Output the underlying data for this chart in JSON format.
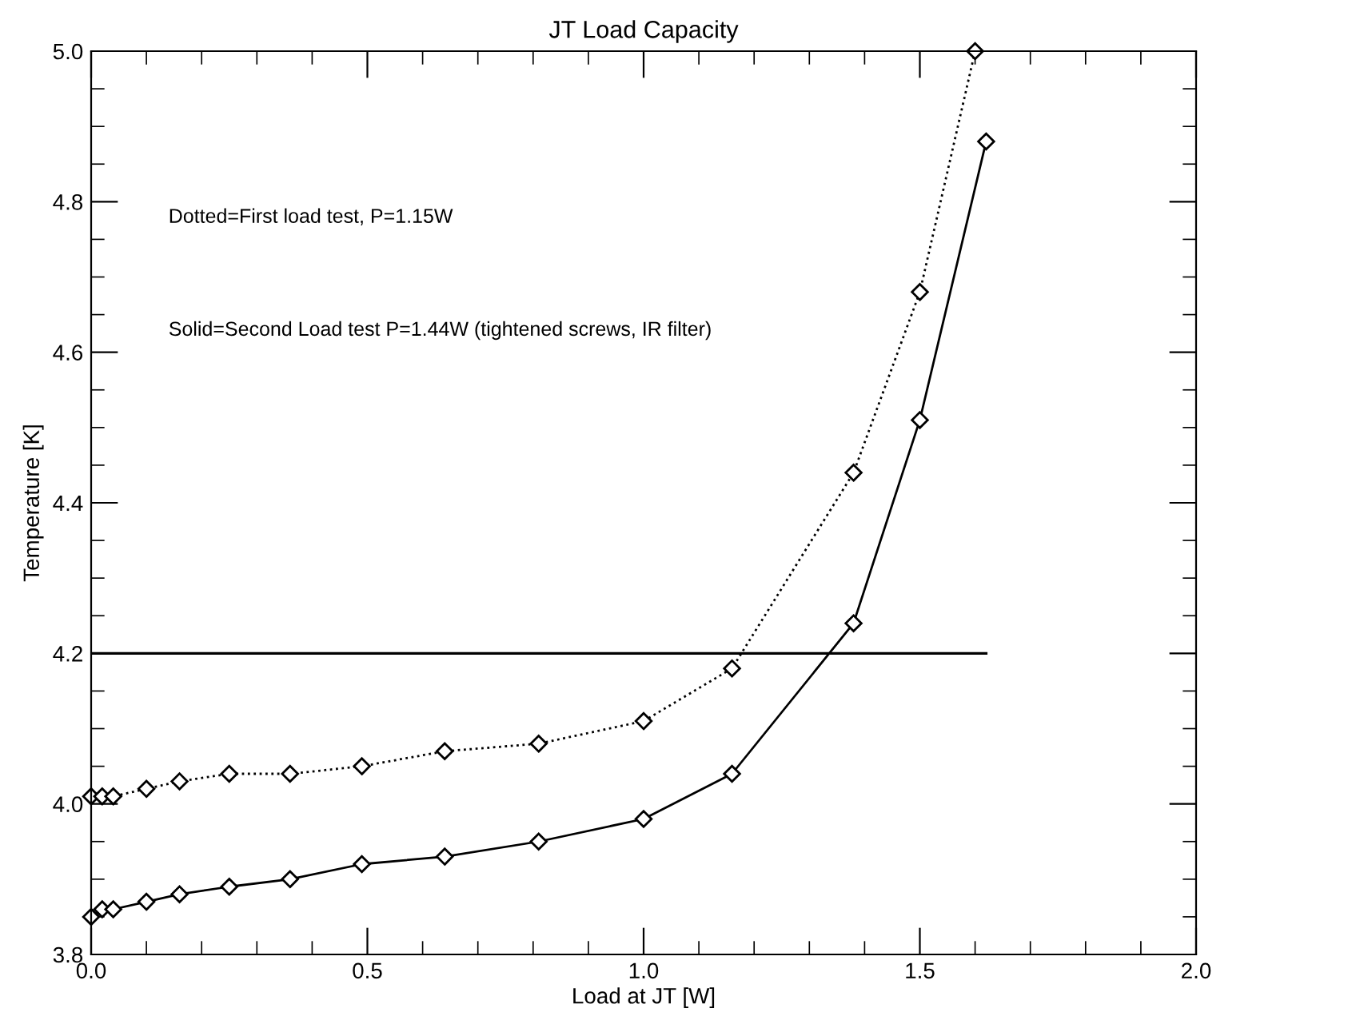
{
  "chart_data": {
    "type": "line",
    "title": "JT Load Capacity",
    "xlabel": "Load at JT [W]",
    "ylabel": "Temperature [K]",
    "annotations": [
      "Dotted=First load test, P=1.15W",
      "Solid=Second Load test P=1.44W (tightened screws, IR filter)"
    ],
    "series": [
      {
        "color": "#000000",
        "line_style": "dotted",
        "x": [
          0,
          0.02,
          0.04,
          0.1,
          0.16,
          0.25,
          0.36,
          0.49,
          0.64,
          0.81,
          1.0,
          1.16,
          1.38,
          1.5,
          1.6
        ],
        "values": [
          4.01,
          4.01,
          4.01,
          4.02,
          4.03,
          4.04,
          4.04,
          4.05,
          4.07,
          4.08,
          4.11,
          4.18,
          4.44,
          4.68,
          5.0
        ],
        "marker": "diamond"
      },
      {
        "color": "#000000",
        "line_style": "solid",
        "x": [
          0,
          0.02,
          0.04,
          0.1,
          0.16,
          0.25,
          0.36,
          0.49,
          0.64,
          0.81,
          1.0,
          1.16,
          1.38,
          1.5,
          1.62
        ],
        "values": [
          3.85,
          3.86,
          3.86,
          3.87,
          3.88,
          3.89,
          3.9,
          3.92,
          3.93,
          3.95,
          3.98,
          4.04,
          4.24,
          4.51,
          4.88
        ],
        "marker": "diamond"
      }
    ],
    "ref_lines": [
      {
        "axis": "y",
        "value": 4.2,
        "color": "#000000"
      }
    ],
    "xlim": [
      0,
      2.0
    ],
    "xticks": [
      {
        "value": 0,
        "label": "0.0"
      },
      0.5,
      {
        "value": 1,
        "label": "1.0"
      },
      1.5,
      {
        "value": 2,
        "label": "2.0"
      }
    ],
    "ylim": [
      3.8,
      5.0
    ],
    "yticks": [
      3.8,
      {
        "value": 4,
        "label": "4.0"
      },
      4.2,
      4.4,
      4.6,
      4.8,
      {
        "value": 5,
        "label": "5.0"
      }
    ],
    "grid": false,
    "legend": false
  }
}
